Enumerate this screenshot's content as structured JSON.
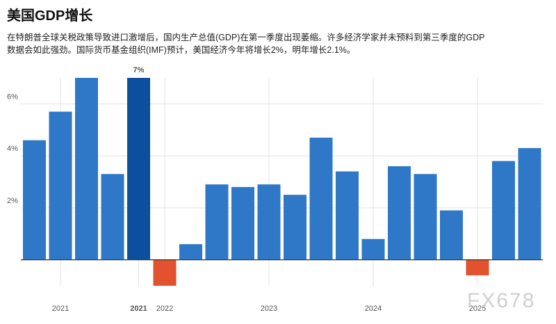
{
  "chart_data": {
    "type": "bar",
    "title": "美国GDP增长",
    "subtitle_lines": [
      "在特朗普全球关税政策导致进口激增后，国内生产总值(GDP)在第一季度出现萎缩。许多经济学家并未预料到第三季度的GDP",
      "数据会如此强劲。国际货币基金组织(IMF)预计，美国经济今年将增长2%，明年增长2.1%。"
    ],
    "categories": [
      null,
      "2021",
      null,
      null,
      "2021",
      "2022",
      null,
      null,
      null,
      "2023",
      null,
      null,
      null,
      "2024",
      null,
      null,
      null,
      "2025",
      null,
      null
    ],
    "values": [
      4.6,
      5.7,
      7.0,
      3.3,
      7.0,
      -1.0,
      0.6,
      2.9,
      2.8,
      2.9,
      2.5,
      4.7,
      3.4,
      0.8,
      3.6,
      3.3,
      1.9,
      -0.6,
      3.8,
      4.3
    ],
    "value_labels": [
      null,
      null,
      null,
      null,
      "7%",
      null,
      null,
      null,
      null,
      null,
      null,
      null,
      null,
      null,
      null,
      null,
      null,
      null,
      null,
      null
    ],
    "colors": [
      "#2e78c7",
      "#2e78c7",
      "#2e78c7",
      "#2e78c7",
      "#0b4f9e",
      "#e2522f",
      "#2e78c7",
      "#2e78c7",
      "#2e78c7",
      "#2e78c7",
      "#2e78c7",
      "#2e78c7",
      "#2e78c7",
      "#2e78c7",
      "#2e78c7",
      "#2e78c7",
      "#2e78c7",
      "#e2522f",
      "#2e78c7",
      "#2e78c7"
    ],
    "ylim": [
      -1,
      7
    ],
    "yticks": [
      {
        "value": 2,
        "label": "2%"
      },
      {
        "value": 4,
        "label": "4%"
      },
      {
        "value": 6,
        "label": "6%"
      }
    ],
    "grid": true,
    "watermark": "FX678"
  }
}
